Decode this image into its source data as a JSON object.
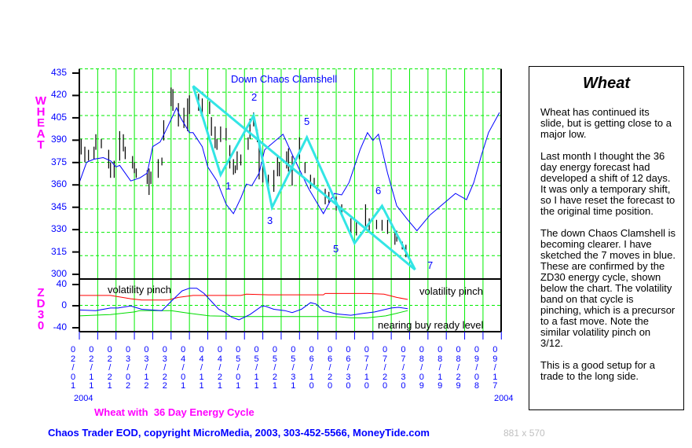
{
  "chart_data": {
    "type": "ohlc-bar+line",
    "title": "Wheat with  36 Day Energy Cycle",
    "year_label_left": "2004",
    "year_label_right": "2004",
    "x_tick_labels": [
      "02/01",
      "02/11",
      "02/21",
      "03/02",
      "03/12",
      "03/22",
      "04/01",
      "04/11",
      "04/21",
      "05/01",
      "05/11",
      "05/21",
      "05/31",
      "06/10",
      "06/20",
      "06/30",
      "07/10",
      "07/20",
      "07/30",
      "08/09",
      "08/19",
      "08/29",
      "09/08",
      "09/17"
    ],
    "price_panel": {
      "ylabel": "WHEAT",
      "ylim": [
        300,
        435
      ],
      "yticks": [
        435,
        420,
        405,
        390,
        375,
        360,
        345,
        330,
        315,
        300
      ],
      "grid": true,
      "price_bars_high_low": [
        [
          "02/02",
          390,
          380
        ],
        [
          "02/04",
          385,
          375
        ],
        [
          "02/06",
          383,
          376
        ],
        [
          "02/09",
          385,
          377
        ],
        [
          "02/10",
          393,
          383
        ],
        [
          "02/13",
          390,
          384
        ],
        [
          "02/17",
          383,
          371
        ],
        [
          "02/18",
          375,
          365
        ],
        [
          "02/20",
          376,
          365
        ],
        [
          "02/23",
          395,
          376
        ],
        [
          "02/25",
          393,
          382
        ],
        [
          "02/26",
          385,
          377
        ],
        [
          "03/01",
          379,
          371
        ],
        [
          "03/02",
          375,
          368
        ],
        [
          "03/03",
          371,
          365
        ],
        [
          "03/09",
          370,
          361
        ],
        [
          "03/10",
          371,
          354
        ],
        [
          "03/11",
          369,
          361
        ],
        [
          "03/15",
          377,
          365
        ],
        [
          "03/17",
          378,
          373
        ],
        [
          "03/18",
          402,
          389
        ],
        [
          "03/22",
          423,
          411
        ],
        [
          "03/23",
          422,
          408
        ],
        [
          "03/26",
          413,
          398
        ],
        [
          "03/29",
          410,
          397
        ],
        [
          "03/31",
          416,
          395
        ],
        [
          "04/01",
          418,
          406
        ],
        [
          "04/06",
          419,
          408
        ],
        [
          "04/08",
          416,
          404
        ],
        [
          "04/12",
          414,
          406
        ],
        [
          "04/13",
          404,
          392
        ],
        [
          "04/15",
          398,
          384
        ],
        [
          "04/16",
          390,
          383
        ],
        [
          "04/18",
          398,
          388
        ],
        [
          "04/21",
          397,
          389
        ],
        [
          "04/23",
          386,
          371
        ],
        [
          "04/25",
          377,
          367
        ],
        [
          "04/26",
          373,
          368
        ],
        [
          "04/27",
          382,
          370
        ],
        [
          "04/29",
          380,
          373
        ],
        [
          "05/03",
          391,
          383
        ],
        [
          "05/04",
          403,
          390
        ],
        [
          "05/06",
          407,
          398
        ],
        [
          "05/08",
          396,
          388
        ],
        [
          "05/09",
          386,
          364
        ],
        [
          "05/11",
          375,
          362
        ],
        [
          "05/14",
          367,
          360
        ],
        [
          "05/17",
          370,
          356
        ],
        [
          "05/19",
          379,
          366
        ],
        [
          "05/20",
          375,
          366
        ],
        [
          "05/24",
          382,
          371
        ],
        [
          "05/25",
          384,
          369
        ],
        [
          "05/27",
          379,
          360
        ],
        [
          "05/31",
          391,
          377
        ],
        [
          "06/03",
          375,
          368
        ],
        [
          "06/06",
          367,
          358
        ],
        [
          "06/08",
          365,
          359
        ],
        [
          "06/14",
          358,
          348
        ],
        [
          "06/16",
          356,
          349
        ],
        [
          "06/20",
          353,
          344
        ],
        [
          "06/23",
          348,
          341
        ],
        [
          "06/28",
          339,
          329
        ],
        [
          "07/01",
          338,
          328
        ],
        [
          "07/06",
          348,
          334
        ],
        [
          "07/08",
          339,
          331
        ],
        [
          "07/12",
          338,
          332
        ],
        [
          "07/15",
          338,
          331
        ],
        [
          "07/18",
          338,
          329
        ],
        [
          "07/22",
          332,
          322
        ],
        [
          "07/23",
          331,
          324
        ],
        [
          "07/26",
          324,
          319
        ],
        [
          "07/28",
          322,
          314
        ]
      ],
      "energy_forecast_line": [
        [
          "02/01",
          362
        ],
        [
          "02/05",
          375
        ],
        [
          "02/09",
          377
        ],
        [
          "02/14",
          378
        ],
        [
          "02/18",
          376
        ],
        [
          "02/21",
          372
        ],
        [
          "02/23",
          373
        ],
        [
          "02/29",
          363
        ],
        [
          "03/05",
          365
        ],
        [
          "03/09",
          368
        ],
        [
          "03/12",
          385
        ],
        [
          "03/16",
          388
        ],
        [
          "03/19",
          395
        ],
        [
          "03/25",
          410
        ],
        [
          "03/27",
          404
        ],
        [
          "04/01",
          394
        ],
        [
          "04/03",
          394
        ],
        [
          "04/08",
          385
        ],
        [
          "04/11",
          372
        ],
        [
          "04/16",
          363
        ],
        [
          "04/21",
          348
        ],
        [
          "04/25",
          342
        ],
        [
          "04/29",
          352
        ],
        [
          "05/02",
          361
        ],
        [
          "05/05",
          360
        ],
        [
          "05/09",
          368
        ],
        [
          "05/12",
          383
        ],
        [
          "05/22",
          393
        ],
        [
          "05/27",
          380
        ],
        [
          "06/05",
          358
        ],
        [
          "06/13",
          342
        ],
        [
          "06/19",
          355
        ],
        [
          "06/23",
          354
        ],
        [
          "06/27",
          362
        ],
        [
          "07/03",
          383
        ],
        [
          "07/07",
          394
        ],
        [
          "07/10",
          389
        ],
        [
          "07/13",
          393
        ],
        [
          "07/18",
          368
        ],
        [
          "07/23",
          347
        ],
        [
          "07/29",
          338
        ],
        [
          "08/03",
          331
        ],
        [
          "08/10",
          341
        ],
        [
          "08/15",
          346
        ],
        [
          "08/24",
          355
        ],
        [
          "08/30",
          351
        ],
        [
          "09/03",
          362
        ],
        [
          "09/07",
          379
        ],
        [
          "09/11",
          394
        ],
        [
          "09/17",
          407
        ]
      ],
      "clamshell_title": "Down Chaos Clamshell",
      "clamshell_upper_line": [
        [
          "04/03",
          424
        ],
        [
          "08/02",
          306
        ]
      ],
      "clamshell_zigzag": [
        [
          "04/03",
          424
        ],
        [
          "04/18",
          367
        ],
        [
          "05/06",
          405
        ],
        [
          "05/16",
          346
        ],
        [
          "06/04",
          391
        ],
        [
          "06/30",
          323
        ],
        [
          "07/15",
          347
        ],
        [
          "08/02",
          306
        ]
      ],
      "wave_labels": [
        "1",
        "2",
        "3",
        "5",
        "5",
        "6",
        "7"
      ],
      "clamshell_color": "#33e5e5"
    },
    "zd30_panel": {
      "ylabel": "ZD30",
      "ylim": [
        -40,
        40
      ],
      "yticks": [
        40,
        0,
        -40
      ],
      "annotations": [
        "volatility pinch",
        "volatility pinch",
        "nearing buy ready level"
      ],
      "series": [
        {
          "color": "#ff0000",
          "values": [
            [
              "02/01",
              15
            ],
            [
              "02/18",
              15
            ],
            [
              "02/29",
              10
            ],
            [
              "03/06",
              8
            ],
            [
              "03/20",
              8
            ],
            [
              "03/26",
              12
            ],
            [
              "04/03",
              15
            ],
            [
              "04/29",
              15
            ],
            [
              "05/02",
              17
            ],
            [
              "05/14",
              16
            ],
            [
              "06/13",
              16
            ],
            [
              "06/14",
              18
            ],
            [
              "07/07",
              18
            ],
            [
              "07/16",
              17
            ],
            [
              "07/23",
              12
            ],
            [
              "07/29",
              9
            ]
          ]
        },
        {
          "color": "#00dd00",
          "values": [
            [
              "02/01",
              -16
            ],
            [
              "02/18",
              -14
            ],
            [
              "03/02",
              -10
            ],
            [
              "03/05",
              -8
            ],
            [
              "03/22",
              -8
            ],
            [
              "04/01",
              -12
            ],
            [
              "04/12",
              -16
            ],
            [
              "04/29",
              -17
            ],
            [
              "06/20",
              -17
            ],
            [
              "06/28",
              -19
            ],
            [
              "07/07",
              -19
            ],
            [
              "07/17",
              -16
            ],
            [
              "07/23",
              -12
            ],
            [
              "07/29",
              -8
            ]
          ]
        },
        {
          "color": "#0000ff",
          "values": [
            [
              "02/01",
              -7
            ],
            [
              "02/10",
              -8
            ],
            [
              "02/18",
              -4
            ],
            [
              "02/22",
              -4
            ],
            [
              "02/29",
              -1
            ],
            [
              "03/06",
              -6
            ],
            [
              "03/17",
              -8
            ],
            [
              "03/22",
              6
            ],
            [
              "03/28",
              22
            ],
            [
              "04/01",
              26
            ],
            [
              "04/05",
              26
            ],
            [
              "04/09",
              18
            ],
            [
              "04/13",
              6
            ],
            [
              "04/17",
              -6
            ],
            [
              "04/20",
              -10
            ],
            [
              "04/24",
              -18
            ],
            [
              "04/28",
              -22
            ],
            [
              "05/04",
              -14
            ],
            [
              "05/10",
              -2
            ],
            [
              "05/12",
              -1
            ],
            [
              "05/17",
              -6
            ],
            [
              "05/23",
              -8
            ],
            [
              "05/27",
              -11
            ],
            [
              "06/01",
              -6
            ],
            [
              "06/06",
              4
            ],
            [
              "06/09",
              2
            ],
            [
              "06/13",
              -8
            ],
            [
              "06/20",
              -13
            ],
            [
              "06/28",
              -15
            ],
            [
              "07/05",
              -12
            ],
            [
              "07/11",
              -10
            ],
            [
              "07/20",
              -4
            ],
            [
              "07/24",
              -3
            ],
            [
              "07/29",
              -5
            ]
          ]
        }
      ]
    },
    "colors": {
      "grid": "#00ee00",
      "axis_text": "#0000ff",
      "label_magenta": "#ff00ff"
    }
  },
  "panel": {
    "title": "Wheat",
    "paragraphs": [
      "Wheat has continued its slide, but is getting close to a major low.",
      "Last month I thought the 36 day energy forecast had developed a shift of 12 days. It was only a temporary shift, so I have reset the forecast to the original time position.",
      "The down Chaos Clamshell is becoming clearer. I have sketched the 7 moves in blue. These are confirmed by the ZD30 energy cycle, shown below the chart. The volatility band on that cycle is pinching, which is a precursor to a fast move. Note the similar volatility pinch on 3/12.",
      "This is a good setup for a trade to the long side."
    ]
  },
  "footer": {
    "credit": "Chaos Trader EOD, copyright MicroMedia, 2003, 303-452-5566, MoneyTide.com",
    "size": "881 x 570"
  }
}
